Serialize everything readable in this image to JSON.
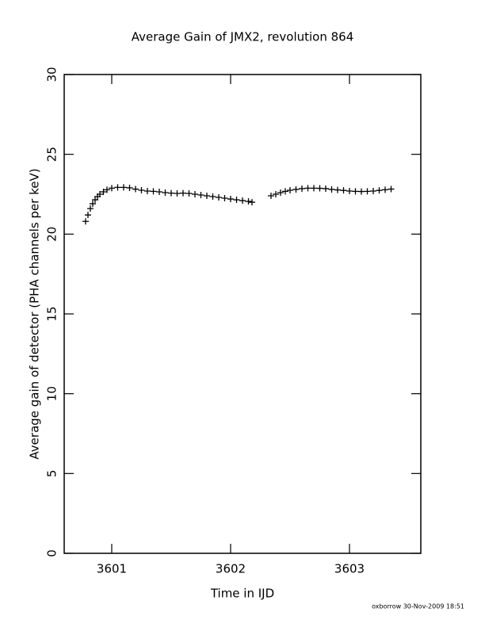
{
  "chart_data": {
    "type": "scatter",
    "title": "Average Gain of JMX2, revolution 864",
    "x_label": "Time in IJD",
    "y_label": "Average gain of detector (PHA channels per keV)",
    "footer": "oxborrow 30-Nov-2009 18:51",
    "color": "#000000",
    "xlim": [
      3600.6,
      3603.6
    ],
    "xticks": [
      3601,
      3602,
      3603
    ],
    "ylim": [
      0,
      30
    ],
    "yticks": [
      0,
      5,
      10,
      15,
      20,
      25,
      30
    ],
    "x": [
      3600.78,
      3600.8,
      3600.82,
      3600.84,
      3600.86,
      3600.88,
      3600.9,
      3600.93,
      3600.96,
      3601.0,
      3601.05,
      3601.1,
      3601.15,
      3601.2,
      3601.25,
      3601.3,
      3601.35,
      3601.4,
      3601.45,
      3601.5,
      3601.55,
      3601.6,
      3601.65,
      3601.7,
      3601.75,
      3601.8,
      3601.85,
      3601.9,
      3601.95,
      3602.0,
      3602.05,
      3602.1,
      3602.15,
      3602.18,
      3602.34,
      3602.38,
      3602.42,
      3602.46,
      3602.5,
      3602.55,
      3602.6,
      3602.65,
      3602.7,
      3602.75,
      3602.8,
      3602.85,
      3602.9,
      3602.95,
      3603.0,
      3603.05,
      3603.1,
      3603.15,
      3603.2,
      3603.25,
      3603.3,
      3603.35
    ],
    "values": [
      20.8,
      21.2,
      21.6,
      21.9,
      22.15,
      22.35,
      22.5,
      22.65,
      22.78,
      22.88,
      22.93,
      22.93,
      22.9,
      22.82,
      22.75,
      22.7,
      22.68,
      22.65,
      22.6,
      22.57,
      22.55,
      22.57,
      22.55,
      22.5,
      22.45,
      22.4,
      22.35,
      22.3,
      22.25,
      22.2,
      22.15,
      22.1,
      22.05,
      22.0,
      22.4,
      22.5,
      22.6,
      22.68,
      22.75,
      22.8,
      22.85,
      22.88,
      22.88,
      22.87,
      22.85,
      22.8,
      22.77,
      22.74,
      22.7,
      22.68,
      22.67,
      22.68,
      22.7,
      22.74,
      22.78,
      22.82
    ]
  }
}
